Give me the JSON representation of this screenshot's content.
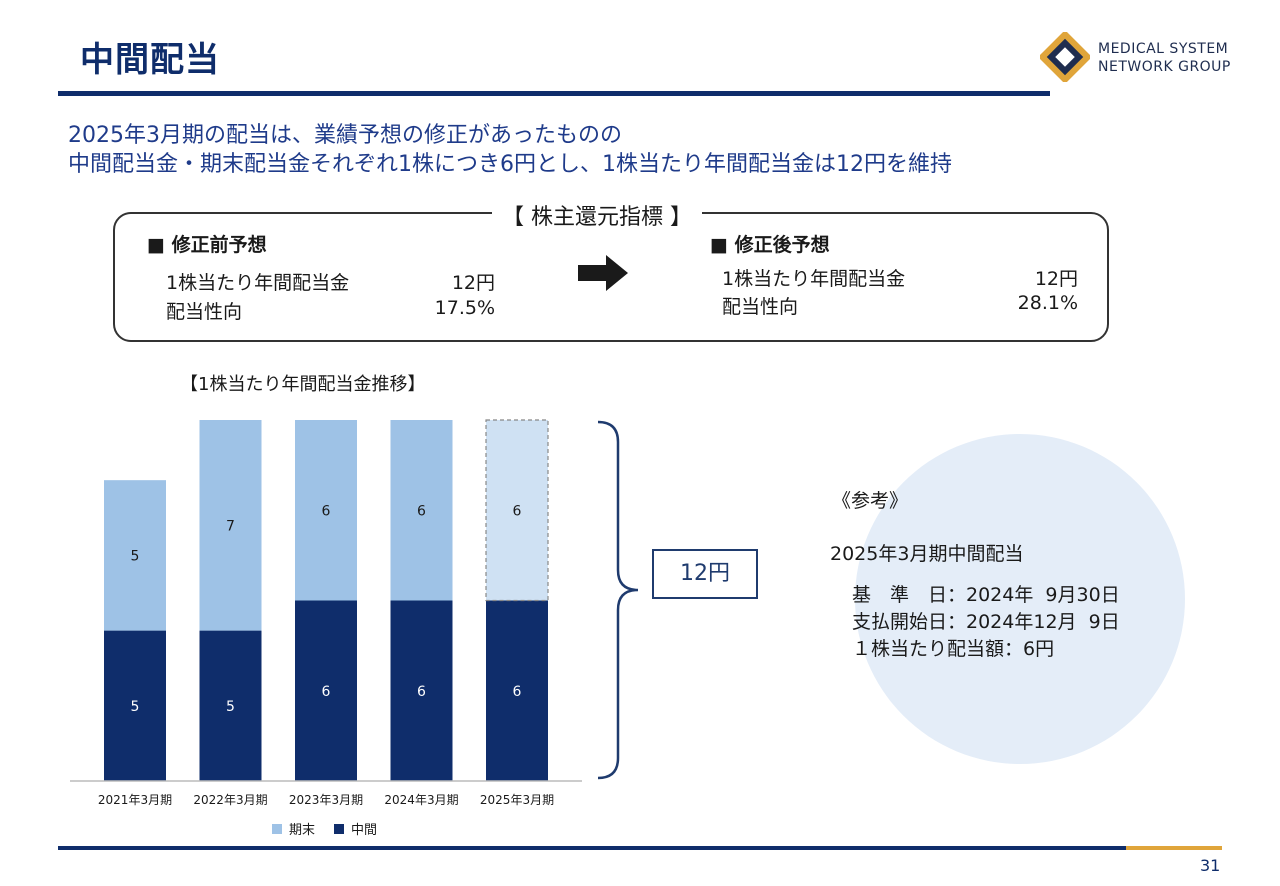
{
  "header": {
    "title": "中間配当",
    "logo_line1": "MEDICAL SYSTEM",
    "logo_line2": "NETWORK GROUP"
  },
  "subtitle": {
    "line1": "2025年3月期の配当は、業績予想の修正があったものの",
    "line2": "中間配当金・期末配当金それぞれ1株につき6円とし、1株当たり年間配当金は12円を維持"
  },
  "indicators": {
    "title": "【 株主還元指標 】",
    "before": {
      "heading": "■ 修正前予想",
      "dividend_label": "1株当たり年間配当金",
      "dividend_value": "12円",
      "payout_label": "配当性向",
      "payout_value": "17.5%"
    },
    "after": {
      "heading": "■ 修正後予想",
      "dividend_label": "1株当たり年間配当金",
      "dividend_value": "12円",
      "payout_label": "配当性向",
      "payout_value": "28.1%"
    }
  },
  "chart_title": "【1株当たり年間配当金推移】",
  "total_label": "12円",
  "reference": {
    "title": "《参考》",
    "heading": "2025年3月期中間配当",
    "line1": "基　準　日：2024年  9月30日",
    "line2": "支払開始日：2024年12月  9日",
    "line3": "１株当たり配当額：6円"
  },
  "page_number": "31",
  "colors": {
    "navy": "#0f2d6b",
    "bar_dark": "#0f2d6b",
    "bar_light": "#9ec2e6",
    "bar_forecast": "#cfe1f3",
    "accent_gold": "#e0a53a"
  },
  "chart_data": {
    "type": "bar",
    "stacked": true,
    "categories": [
      "2021年3月期",
      "2022年3月期",
      "2023年3月期",
      "2024年3月期",
      "2025年3月期"
    ],
    "series": [
      {
        "name": "中間",
        "values": [
          5,
          5,
          6,
          6,
          6
        ],
        "color": "#0f2d6b"
      },
      {
        "name": "期末",
        "values": [
          5,
          7,
          6,
          6,
          6
        ],
        "color": "#9ec2e6"
      }
    ],
    "forecast_category": "2025年3月期",
    "ylim": [
      0,
      12
    ],
    "legend": "bottom",
    "grid": false
  }
}
